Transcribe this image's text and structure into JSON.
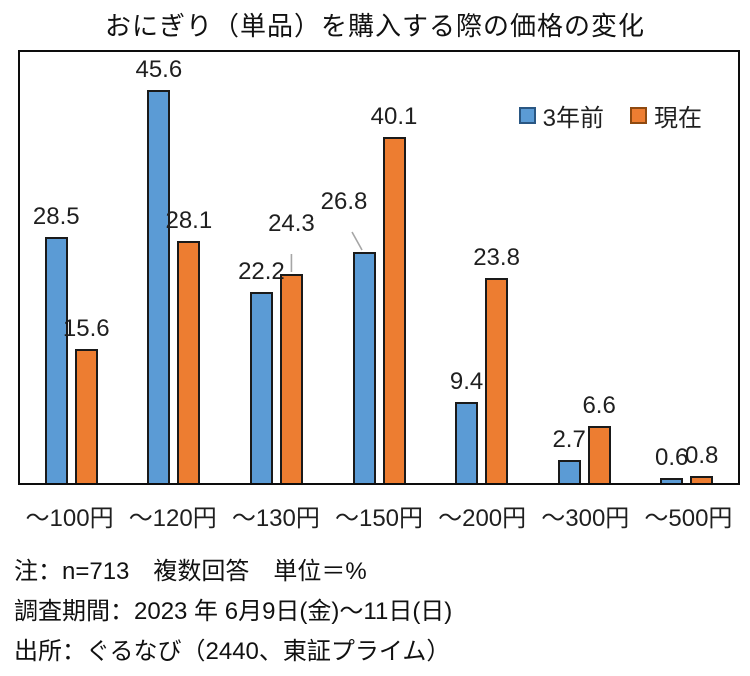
{
  "title": "おにぎり（単品）を購入する際の価格の変化",
  "colors": {
    "series1_fill": "#5B9BD5",
    "series1_border": "#2A5783",
    "series2_fill": "#ED7D31",
    "series2_border": "#8F4A10",
    "bar_border": "#1a1a1a",
    "plot_border": "#0d0d0d",
    "label_text": "#1f1f1f",
    "leader_line": "#a6a6a6"
  },
  "chart_data": {
    "type": "bar",
    "title": "おにぎり（単品）を購入する際の価格の変化",
    "categories": [
      "～100円",
      "～120円",
      "～130円",
      "～150円",
      "～200円",
      "～300円",
      "～500円"
    ],
    "series": [
      {
        "name": "3年前",
        "color": "#5B9BD5",
        "values": [
          28.5,
          45.6,
          22.2,
          26.8,
          9.4,
          2.7,
          0.6
        ]
      },
      {
        "name": "現在",
        "color": "#ED7D31",
        "values": [
          15.6,
          28.1,
          24.3,
          40.1,
          23.8,
          6.6,
          0.8
        ]
      }
    ],
    "xlabel": "",
    "ylabel": "",
    "unit": "%",
    "ylim": [
      0,
      50
    ],
    "grid": false,
    "data_labels": true,
    "legend_position": "top-right-inside",
    "callouts": [
      {
        "ci": 2,
        "si": 1,
        "dx": 0,
        "raise": 30
      },
      {
        "ci": 3,
        "si": 0,
        "dx": -20,
        "raise": 30
      }
    ]
  },
  "notes": {
    "line1": "注：n=713　複数回答　単位＝%",
    "line2": "調査期間：2023 年 6月9日(金)～11日(日)",
    "line3": "出所：ぐるなび（2440、東証プライム）"
  }
}
